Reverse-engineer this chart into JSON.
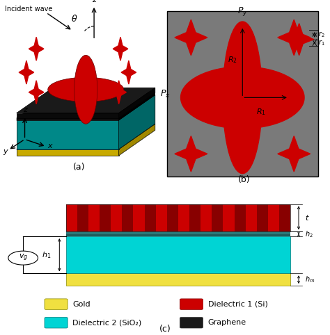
{
  "fig_width": 4.74,
  "fig_height": 4.82,
  "bg_color": "#ffffff",
  "panel_a_label": "(a)",
  "panel_b_label": "(b)",
  "panel_c_label": "(c)",
  "panel_b_bg": "#7a7a7a",
  "panel_b_border": "#000000",
  "red_color": "#cc0000",
  "red_dark": "#880000",
  "layer_gold_color": "#f0e040",
  "layer_sio2_color": "#00d4d4",
  "layer_graphene_color": "#1a1a1a",
  "layer_si_color": "#cc0000",
  "layer_si_dark": "#770000",
  "legend_gold": "Gold",
  "legend_si": "Dielectric 1 (Si)",
  "legend_sio2": "Dielectric 2 (SiO₂)",
  "legend_graphene": "Graphene"
}
